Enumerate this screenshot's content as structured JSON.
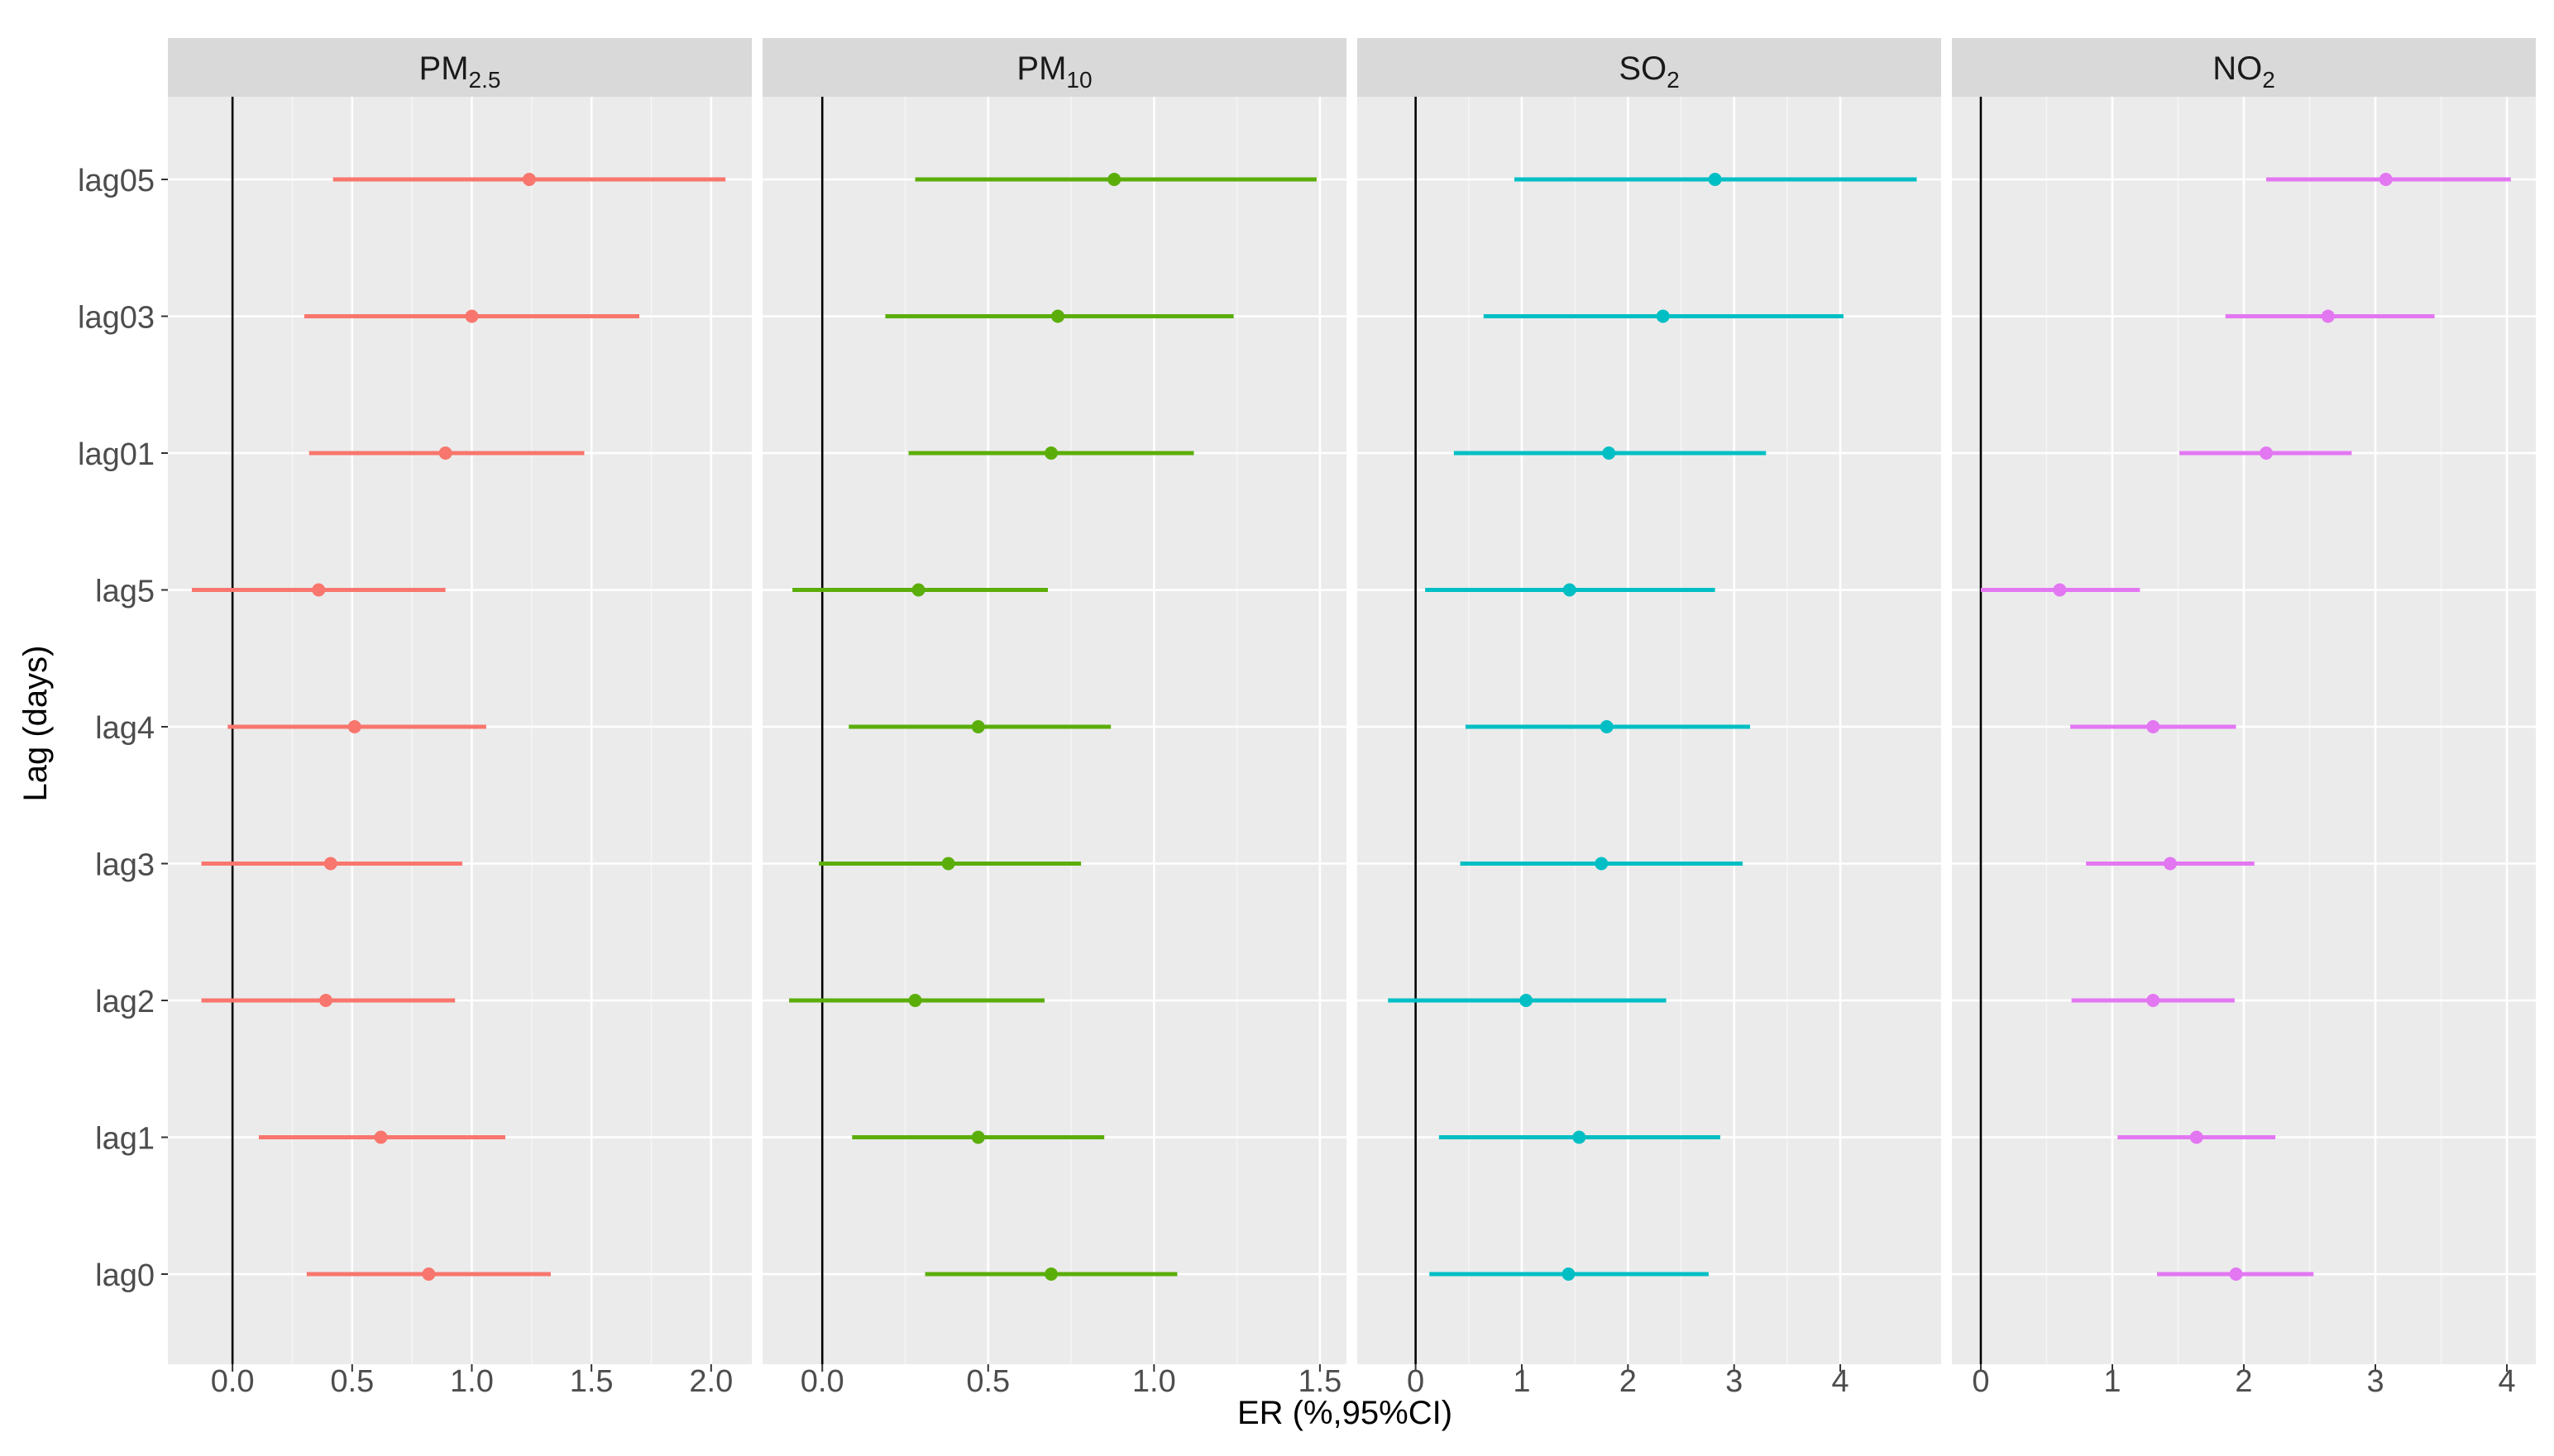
{
  "chart_data": {
    "type": "forest",
    "xlabel": "ER (%,95%CI)",
    "ylabel": "Lag (days)",
    "categories": [
      "lag05",
      "lag03",
      "lag01",
      "lag5",
      "lag4",
      "lag3",
      "lag2",
      "lag1",
      "lag0"
    ],
    "reference_line_x": 0,
    "grid": true,
    "panels": [
      {
        "title_main": "PM",
        "title_sub": "2.5",
        "color": "#F8766D",
        "xlim": [
          -0.27,
          2.17
        ],
        "ticks": [
          0.0,
          0.5,
          1.0,
          1.5,
          2.0
        ],
        "tick_labels": [
          "0.0",
          "0.5",
          "1.0",
          "1.5",
          "2.0"
        ],
        "points": [
          {
            "lag": "lag05",
            "est": 1.24,
            "lo": 0.42,
            "hi": 2.06
          },
          {
            "lag": "lag03",
            "est": 1.0,
            "lo": 0.3,
            "hi": 1.7
          },
          {
            "lag": "lag01",
            "est": 0.89,
            "lo": 0.32,
            "hi": 1.47
          },
          {
            "lag": "lag5",
            "est": 0.36,
            "lo": -0.17,
            "hi": 0.89
          },
          {
            "lag": "lag4",
            "est": 0.51,
            "lo": -0.02,
            "hi": 1.06
          },
          {
            "lag": "lag3",
            "est": 0.41,
            "lo": -0.13,
            "hi": 0.96
          },
          {
            "lag": "lag2",
            "est": 0.39,
            "lo": -0.13,
            "hi": 0.93
          },
          {
            "lag": "lag1",
            "est": 0.62,
            "lo": 0.11,
            "hi": 1.14
          },
          {
            "lag": "lag0",
            "est": 0.82,
            "lo": 0.31,
            "hi": 1.33
          }
        ]
      },
      {
        "title_main": "PM",
        "title_sub": "10",
        "color": "#5BAE0A",
        "xlim": [
          -0.18,
          1.58
        ],
        "ticks": [
          0.0,
          0.5,
          1.0,
          1.5
        ],
        "tick_labels": [
          "0.0",
          "0.5",
          "1.0",
          "1.5"
        ],
        "points": [
          {
            "lag": "lag05",
            "est": 0.88,
            "lo": 0.28,
            "hi": 1.49
          },
          {
            "lag": "lag03",
            "est": 0.71,
            "lo": 0.19,
            "hi": 1.24
          },
          {
            "lag": "lag01",
            "est": 0.69,
            "lo": 0.26,
            "hi": 1.12
          },
          {
            "lag": "lag5",
            "est": 0.29,
            "lo": -0.09,
            "hi": 0.68
          },
          {
            "lag": "lag4",
            "est": 0.47,
            "lo": 0.08,
            "hi": 0.87
          },
          {
            "lag": "lag3",
            "est": 0.38,
            "lo": -0.01,
            "hi": 0.78
          },
          {
            "lag": "lag2",
            "est": 0.28,
            "lo": -0.1,
            "hi": 0.67
          },
          {
            "lag": "lag1",
            "est": 0.47,
            "lo": 0.09,
            "hi": 0.85
          },
          {
            "lag": "lag0",
            "est": 0.69,
            "lo": 0.31,
            "hi": 1.07
          }
        ]
      },
      {
        "title_main": "SO",
        "title_sub": "2",
        "color": "#00BFC4",
        "xlim": [
          -0.55,
          4.95
        ],
        "ticks": [
          0,
          1,
          2,
          3,
          4
        ],
        "tick_labels": [
          "0",
          "1",
          "2",
          "3",
          "4"
        ],
        "points": [
          {
            "lag": "lag05",
            "est": 2.82,
            "lo": 0.93,
            "hi": 4.72
          },
          {
            "lag": "lag03",
            "est": 2.33,
            "lo": 0.64,
            "hi": 4.03
          },
          {
            "lag": "lag01",
            "est": 1.82,
            "lo": 0.36,
            "hi": 3.3
          },
          {
            "lag": "lag5",
            "est": 1.45,
            "lo": 0.09,
            "hi": 2.82
          },
          {
            "lag": "lag4",
            "est": 1.8,
            "lo": 0.47,
            "hi": 3.15
          },
          {
            "lag": "lag3",
            "est": 1.75,
            "lo": 0.42,
            "hi": 3.08
          },
          {
            "lag": "lag2",
            "est": 1.04,
            "lo": -0.26,
            "hi": 2.36
          },
          {
            "lag": "lag1",
            "est": 1.54,
            "lo": 0.22,
            "hi": 2.87
          },
          {
            "lag": "lag0",
            "est": 1.44,
            "lo": 0.13,
            "hi": 2.76
          }
        ]
      },
      {
        "title_main": "NO",
        "title_sub": "2",
        "color": "#E377F2",
        "xlim": [
          -0.22,
          4.22
        ],
        "ticks": [
          0,
          1,
          2,
          3,
          4
        ],
        "tick_labels": [
          "0",
          "1",
          "2",
          "3",
          "4"
        ],
        "points": [
          {
            "lag": "lag05",
            "est": 3.08,
            "lo": 2.17,
            "hi": 4.03
          },
          {
            "lag": "lag03",
            "est": 2.64,
            "lo": 1.86,
            "hi": 3.45
          },
          {
            "lag": "lag01",
            "est": 2.17,
            "lo": 1.51,
            "hi": 2.82
          },
          {
            "lag": "lag5",
            "est": 0.6,
            "lo": 0.0,
            "hi": 1.21
          },
          {
            "lag": "lag4",
            "est": 1.31,
            "lo": 0.68,
            "hi": 1.94
          },
          {
            "lag": "lag3",
            "est": 1.44,
            "lo": 0.8,
            "hi": 2.08
          },
          {
            "lag": "lag2",
            "est": 1.31,
            "lo": 0.69,
            "hi": 1.93
          },
          {
            "lag": "lag1",
            "est": 1.64,
            "lo": 1.04,
            "hi": 2.24
          },
          {
            "lag": "lag0",
            "est": 1.94,
            "lo": 1.34,
            "hi": 2.53
          }
        ]
      }
    ]
  }
}
